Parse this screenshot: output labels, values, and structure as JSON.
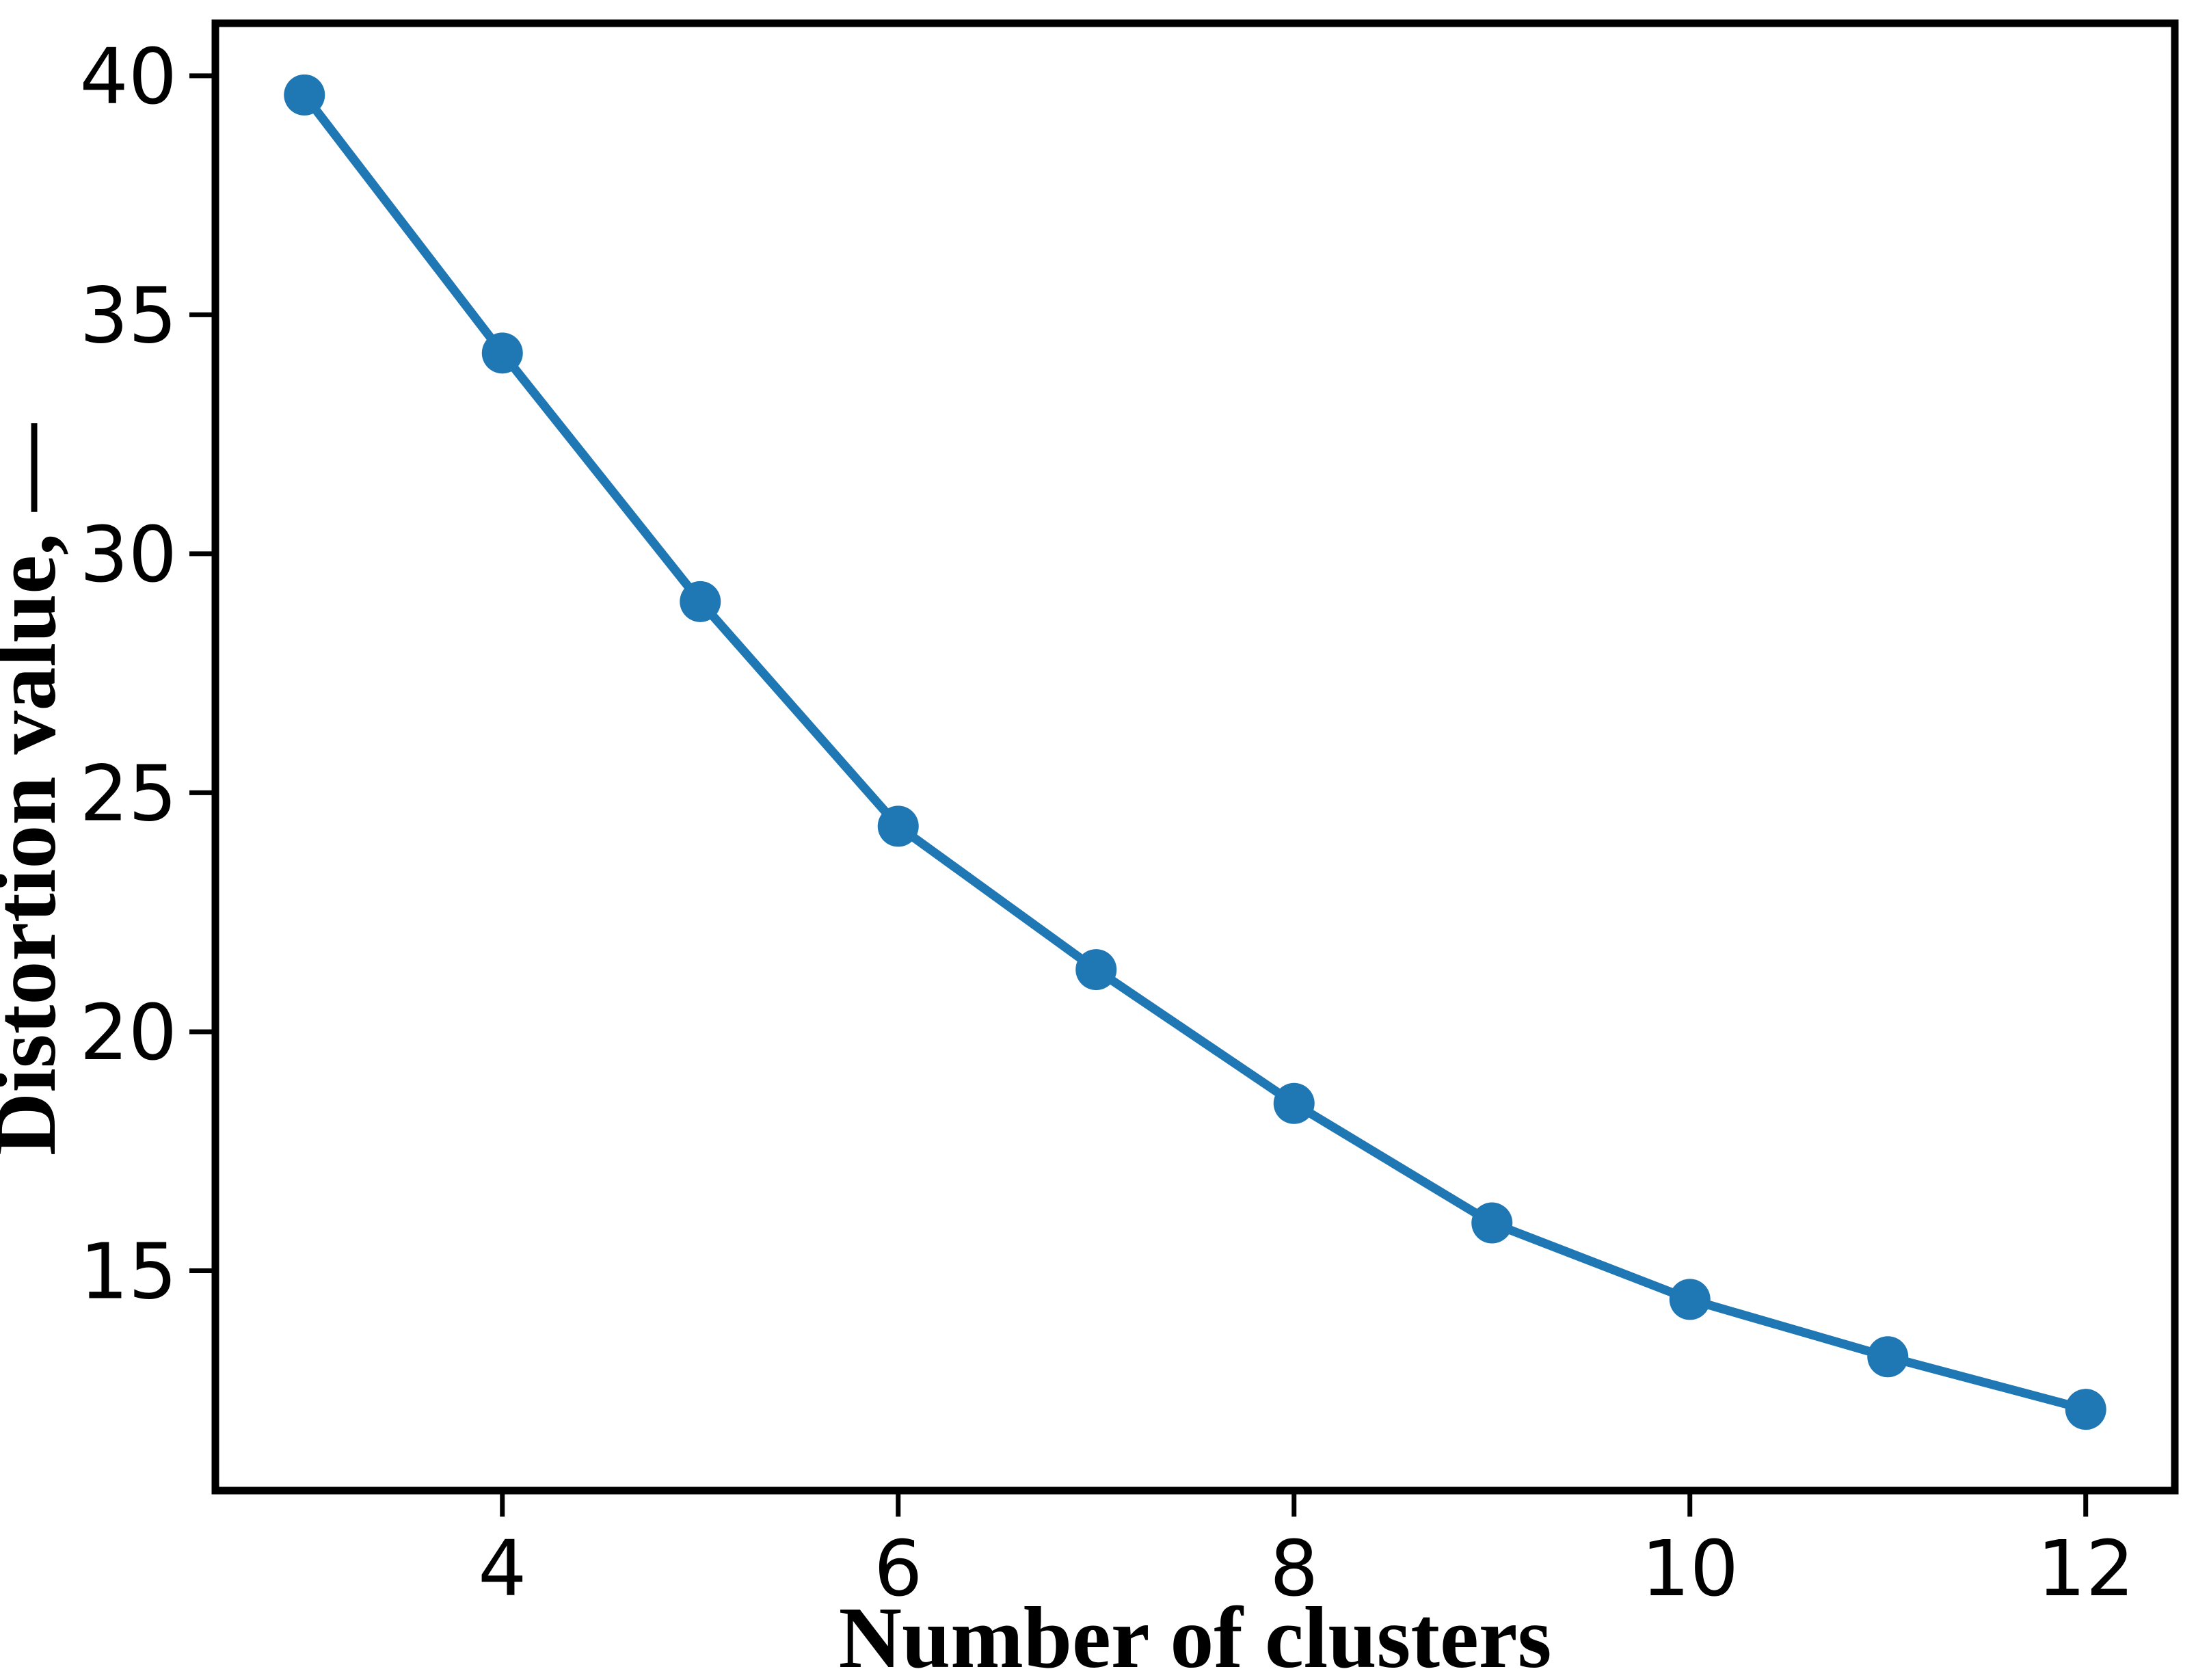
{
  "figure": {
    "background_color": "#ffffff",
    "spine_color": "#000000",
    "tick_color": "#000000",
    "text_color": "#000000"
  },
  "chart_data": {
    "type": "line",
    "title": "",
    "xlabel": "Number of clusters",
    "ylabel": "Distortion value, —",
    "series": [
      {
        "name": "distortion",
        "x": [
          3,
          4,
          5,
          6,
          7,
          8,
          9,
          10,
          11,
          12
        ],
        "values": [
          39.6,
          34.2,
          29.0,
          24.3,
          21.3,
          18.5,
          16.0,
          14.4,
          13.2,
          12.1
        ],
        "line_color": "#1f77b4",
        "marker": "circle",
        "marker_color": "#1f77b4"
      }
    ],
    "x_ticks": [
      4,
      6,
      8,
      10,
      12
    ],
    "y_ticks": [
      15,
      20,
      25,
      30,
      35,
      40
    ],
    "xlim": [
      2.55,
      12.45
    ],
    "ylim": [
      10.4,
      41.1
    ],
    "grid": false,
    "legend_position": "none",
    "box_spines": true
  }
}
